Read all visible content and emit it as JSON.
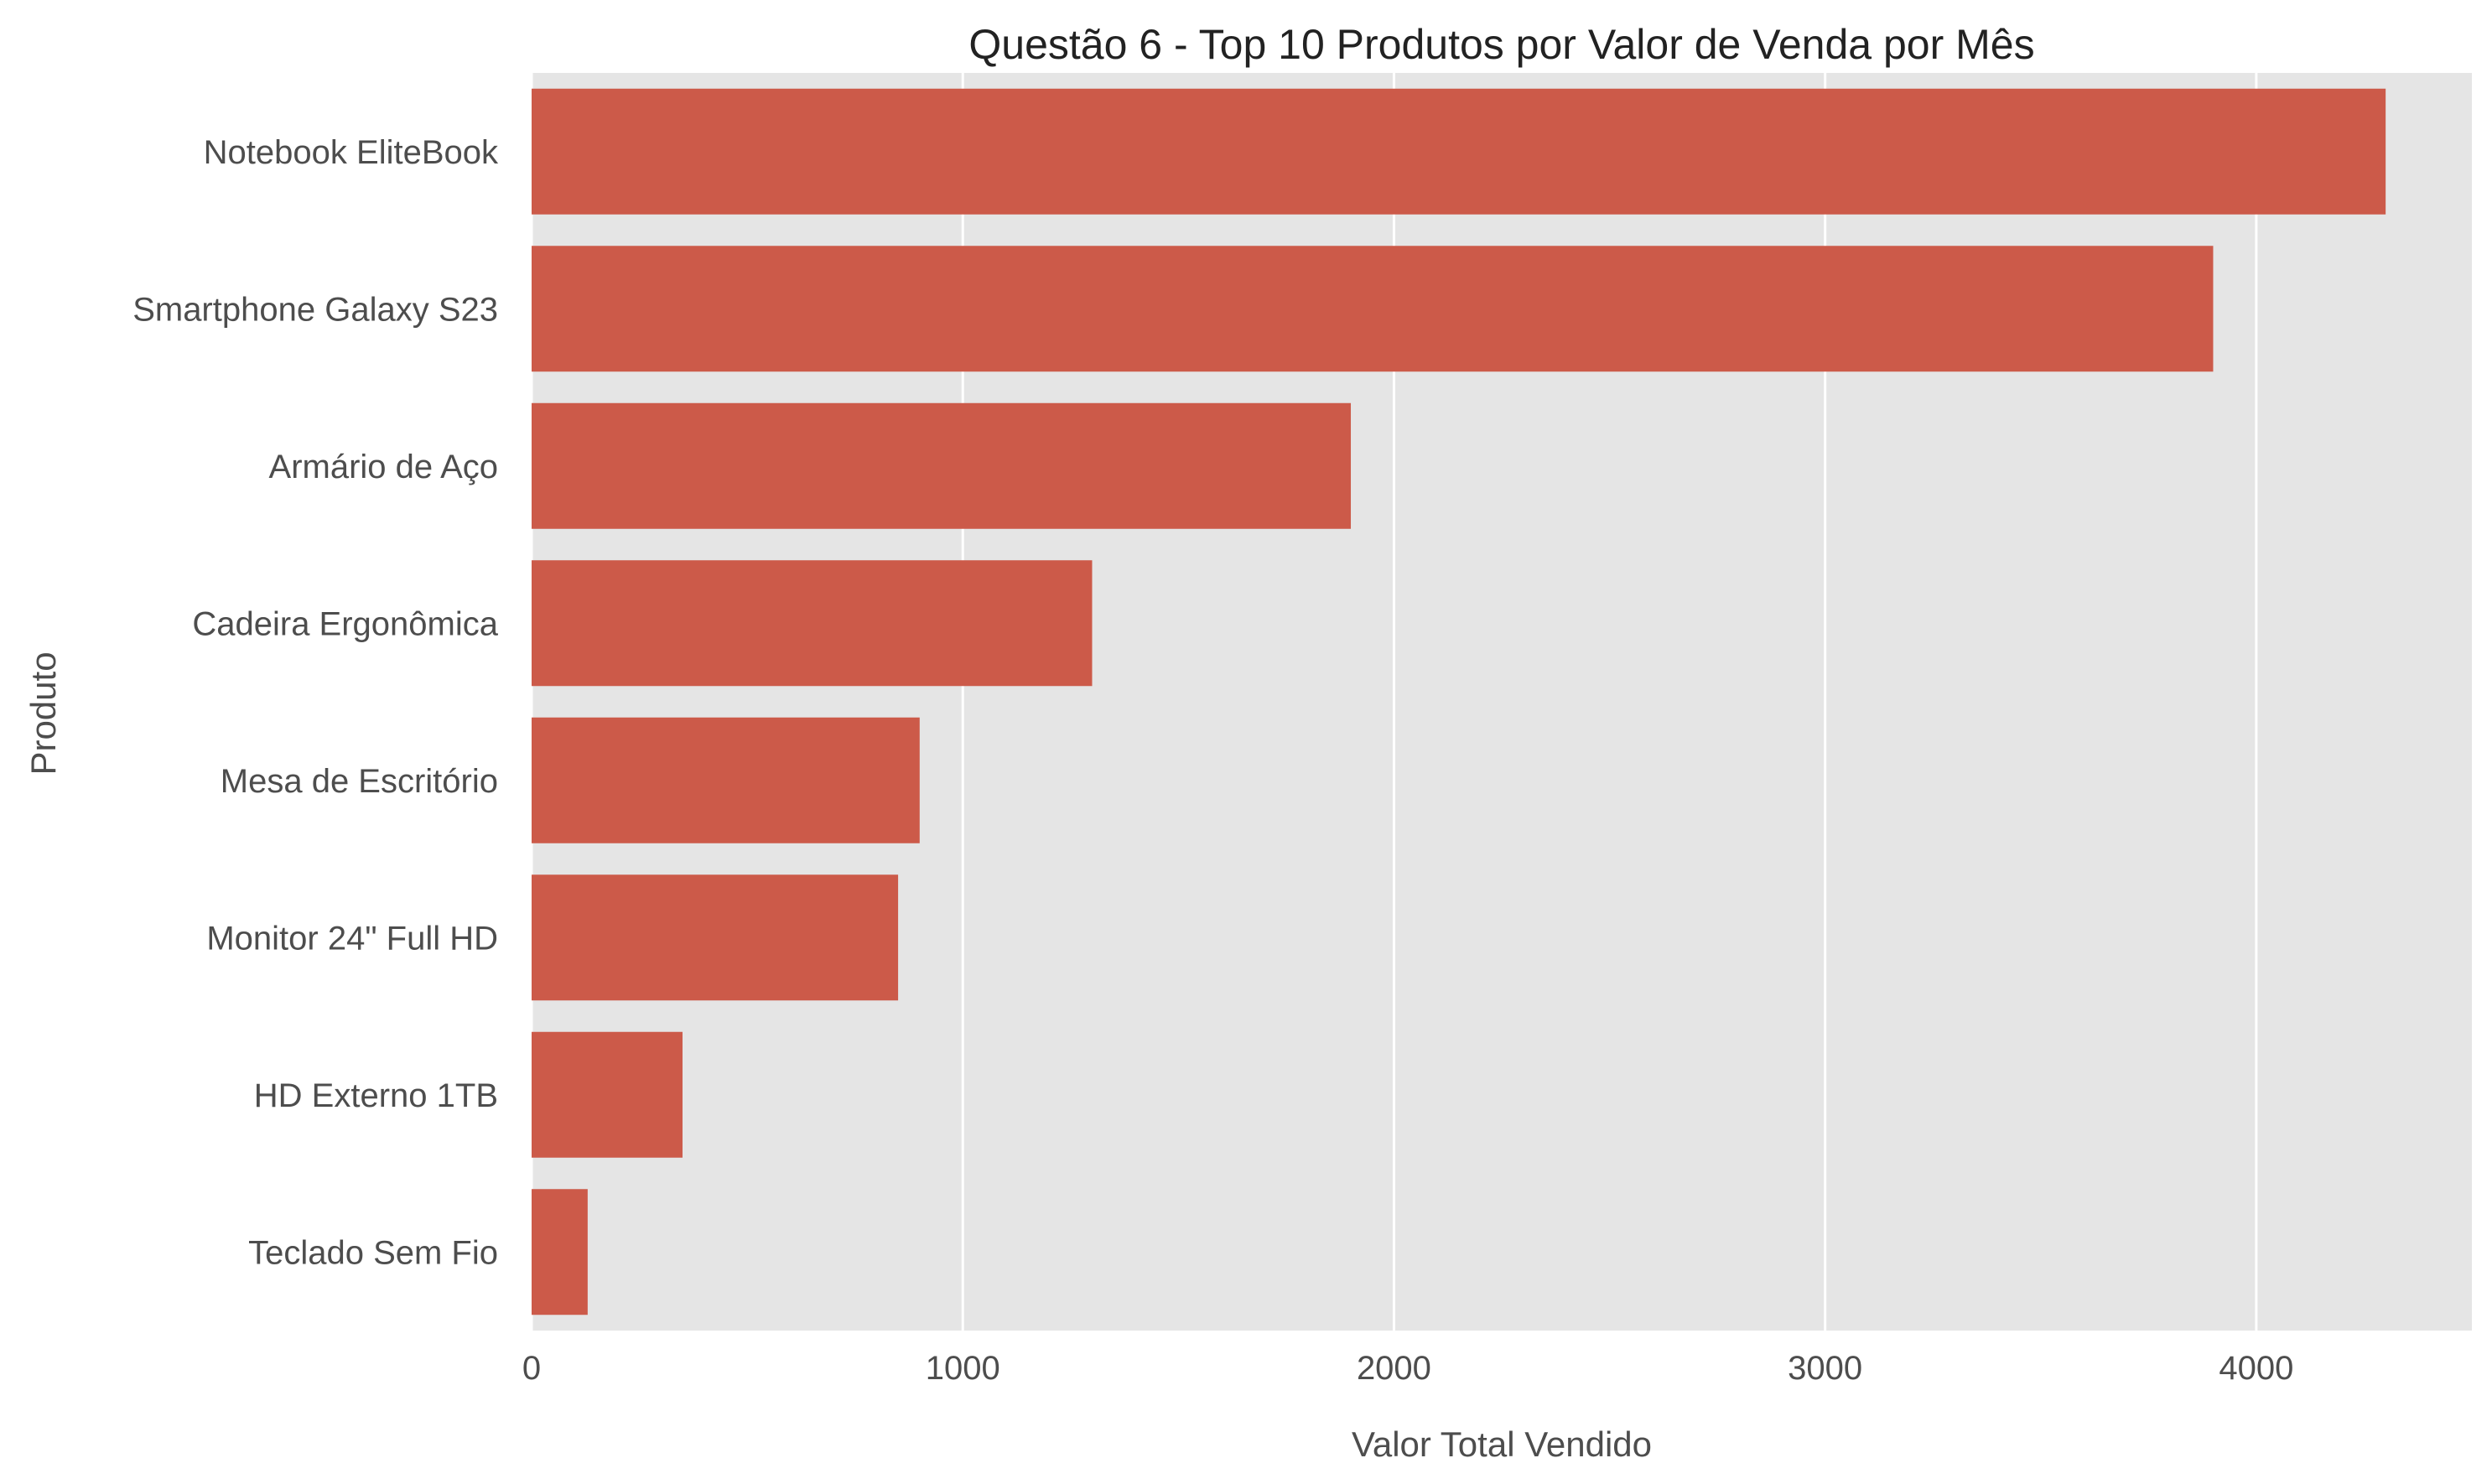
{
  "colors": {
    "bar": "#cc5a49",
    "plot_background": "#e5e5e5",
    "grid": "#ffffff",
    "text": "#4d4d4d",
    "title": "#222222"
  },
  "chart_data": {
    "type": "bar",
    "orientation": "horizontal",
    "title": "Questão 6 - Top 10 Produtos por Valor de Venda por Mês",
    "xlabel": "Valor Total Vendido",
    "ylabel": "Produto",
    "categories": [
      "Notebook EliteBook",
      "Smartphone Galaxy S23",
      "Armário de Aço",
      "Cadeira Ergonômica",
      "Mesa de Escritório",
      "Monitor 24\" Full HD",
      "HD Externo 1TB",
      "Teclado Sem Fio"
    ],
    "values": [
      4300,
      3900,
      1900,
      1300,
      900,
      850,
      350,
      130
    ],
    "xlim": [
      0,
      4500
    ],
    "xticks": [
      0,
      1000,
      2000,
      3000,
      4000
    ],
    "xtick_labels": [
      "0",
      "1000",
      "2000",
      "3000",
      "4000"
    ],
    "grid": true
  }
}
